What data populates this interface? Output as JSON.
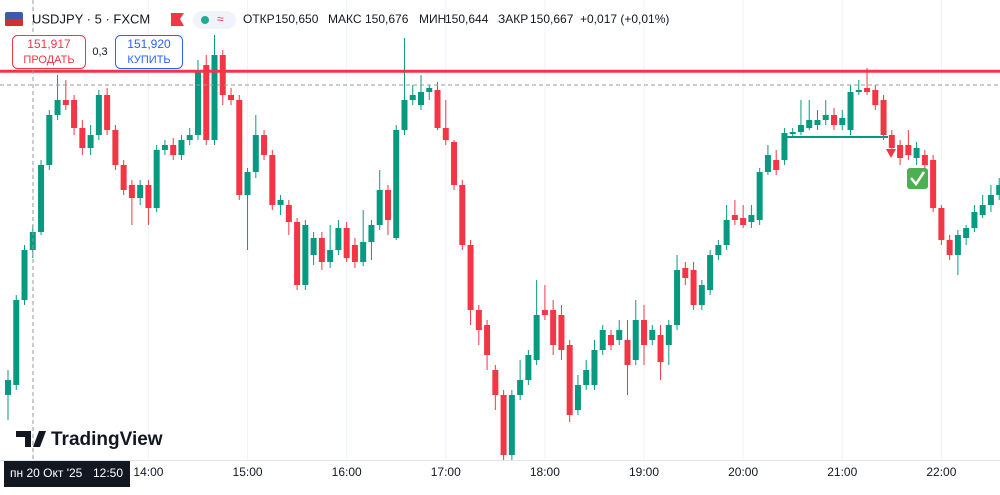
{
  "header": {
    "symbol": "USDJPY · 5 · FXCM",
    "open_label": "ОТКР",
    "open": "150,650",
    "high_label": "МАКС",
    "high": "150,676",
    "low_label": "МИН",
    "low": "150,644",
    "close_label": "ЗАКР",
    "close": "150,667",
    "change": "+0,017 (+0,01%)"
  },
  "trade": {
    "sell_price": "151,917",
    "sell_label": "ПРОДАТЬ",
    "spread": "0,3",
    "buy_price": "151,920",
    "buy_label": "КУПИТЬ"
  },
  "crosshair": {
    "date": "пн 20 Окт '25",
    "time": "12:50"
  },
  "watermark": "TradingView",
  "chart_data": {
    "type": "candlestick",
    "up_color": "#089981",
    "down_color": "#f23645",
    "price_line": 151.917,
    "price_line_color": "#f23645",
    "grid": true,
    "ylim": [
      148.03,
      152.63
    ],
    "categories": [
      null,
      null,
      null,
      null,
      null,
      null,
      null,
      null,
      null,
      null,
      null,
      null,
      null,
      null,
      null,
      null,
      null,
      "14:00",
      null,
      null,
      null,
      null,
      null,
      null,
      null,
      null,
      null,
      null,
      null,
      "15:00",
      null,
      null,
      null,
      null,
      null,
      null,
      null,
      null,
      null,
      null,
      null,
      "16:00",
      null,
      null,
      null,
      null,
      null,
      null,
      null,
      null,
      null,
      null,
      null,
      "17:00",
      null,
      null,
      null,
      null,
      null,
      null,
      null,
      null,
      null,
      null,
      null,
      "18:00",
      null,
      null,
      null,
      null,
      null,
      null,
      null,
      null,
      null,
      null,
      null,
      "19:00",
      null,
      null,
      null,
      null,
      null,
      null,
      null,
      null,
      null,
      null,
      null,
      "20:00",
      null,
      null,
      null,
      null,
      null,
      null,
      null,
      null,
      null,
      null,
      null,
      "21:00",
      null,
      null,
      null,
      null,
      null,
      null,
      null,
      null,
      null,
      null,
      null,
      "22:00",
      null,
      null,
      null,
      null,
      null,
      null,
      null
    ],
    "open": [
      148.68,
      148.78,
      149.63,
      150.13,
      150.31,
      150.98,
      151.48,
      151.63,
      151.63,
      151.35,
      151.15,
      151.28,
      151.68,
      151.33,
      150.98,
      150.78,
      150.65,
      150.78,
      150.55,
      151.13,
      151.18,
      151.08,
      151.23,
      151.28,
      151.98,
      151.23,
      152.08,
      151.68,
      151.63,
      150.68,
      150.91,
      151.28,
      151.08,
      150.58,
      150.58,
      150.41,
      149.78,
      150.08,
      150.25,
      150.01,
      150.13,
      150.35,
      150.18,
      150.01,
      150.21,
      150.38,
      150.73,
      150.25,
      151.33,
      151.63,
      151.58,
      151.71,
      151.73,
      151.35,
      151.21,
      150.78,
      150.18,
      149.53,
      149.38,
      148.93,
      148.68,
      148.08,
      148.68,
      148.83,
      149.03,
      149.53,
      149.53,
      149.48,
      149.18,
      148.53,
      148.78,
      148.78,
      149.13,
      149.28,
      149.23,
      149.23,
      149.03,
      149.43,
      149.23,
      149.28,
      149.18,
      149.38,
      149.95,
      149.93,
      149.58,
      149.73,
      150.08,
      150.18,
      150.48,
      150.45,
      150.41,
      150.43,
      150.91,
      151.03,
      151.03,
      151.29,
      151.31,
      151.35,
      151.38,
      151.43,
      151.48,
      151.38,
      151.33,
      151.71,
      151.75,
      151.73,
      151.63,
      151.28,
      151.18,
      151.18,
      151.05,
      151.08,
      151.03,
      150.55,
      150.23,
      150.08,
      150.25,
      150.35,
      150.48,
      150.58,
      150.68
    ],
    "high": [
      148.93,
      149.68,
      150.18,
      150.38,
      151.03,
      151.53,
      151.88,
      151.83,
      151.68,
      151.43,
      151.38,
      151.73,
      151.75,
      151.38,
      151.03,
      150.83,
      150.83,
      150.83,
      151.18,
      151.23,
      151.25,
      151.28,
      151.35,
      152.03,
      152.08,
      152.28,
      152.13,
      151.75,
      151.68,
      150.95,
      151.48,
      151.33,
      151.13,
      150.68,
      150.63,
      150.45,
      150.43,
      150.31,
      150.31,
      150.38,
      150.43,
      150.41,
      150.25,
      150.53,
      150.43,
      150.93,
      150.78,
      151.38,
      152.25,
      151.78,
      151.88,
      151.78,
      151.81,
      151.63,
      151.23,
      150.83,
      150.23,
      149.58,
      149.43,
      148.98,
      148.73,
      148.73,
      149.03,
      149.13,
      149.83,
      149.78,
      149.63,
      149.58,
      149.23,
      148.88,
      149.03,
      149.23,
      149.38,
      149.33,
      149.43,
      149.43,
      149.63,
      149.58,
      149.38,
      149.38,
      149.43,
      150.08,
      150.01,
      150.01,
      149.83,
      150.13,
      150.23,
      150.58,
      150.63,
      150.58,
      150.58,
      150.95,
      151.18,
      151.13,
      151.35,
      151.35,
      151.63,
      151.63,
      151.53,
      151.63,
      151.55,
      151.53,
      151.78,
      151.83,
      151.95,
      151.78,
      151.68,
      151.33,
      151.23,
      151.33,
      151.21,
      151.13,
      151.08,
      150.58,
      150.28,
      150.33,
      150.38,
      150.58,
      150.68,
      150.78,
      150.85
    ],
    "low": [
      148.43,
      148.73,
      149.58,
      150.05,
      150.28,
      150.93,
      151.43,
      151.53,
      151.28,
      151.08,
      151.08,
      151.23,
      151.28,
      150.93,
      150.68,
      150.38,
      150.58,
      150.38,
      150.51,
      151.08,
      151.03,
      151.03,
      151.18,
      151.23,
      151.18,
      151.18,
      151.58,
      151.58,
      150.63,
      150.13,
      150.85,
      151.03,
      150.53,
      150.48,
      150.28,
      149.73,
      149.73,
      149.98,
      149.93,
      149.95,
      150.08,
      150.01,
      149.95,
      149.97,
      150.03,
      150.33,
      150.28,
      150.23,
      151.28,
      151.58,
      151.53,
      151.63,
      151.33,
      151.18,
      150.73,
      150.13,
      149.38,
      149.18,
      148.93,
      148.53,
      148.03,
      148.03,
      148.63,
      148.78,
      148.98,
      149.43,
      149.08,
      149.03,
      148.41,
      148.48,
      148.73,
      148.73,
      149.08,
      149.13,
      149.18,
      148.68,
      148.98,
      148.98,
      149.18,
      148.83,
      148.98,
      149.33,
      149.78,
      149.53,
      149.53,
      149.68,
      150.03,
      150.13,
      150.38,
      150.35,
      150.35,
      150.38,
      150.88,
      150.88,
      150.98,
      151.25,
      151.28,
      151.33,
      151.33,
      151.38,
      151.33,
      151.33,
      151.28,
      151.68,
      151.68,
      151.53,
      151.23,
      151.08,
      150.98,
      151.03,
      150.98,
      150.93,
      150.51,
      150.18,
      150.03,
      149.88,
      150.18,
      150.31,
      150.45,
      150.51,
      150.63
    ],
    "close": [
      148.83,
      149.63,
      150.13,
      150.31,
      150.98,
      151.48,
      151.63,
      151.58,
      151.35,
      151.15,
      151.28,
      151.68,
      151.33,
      150.98,
      150.73,
      150.65,
      150.78,
      150.55,
      151.13,
      151.18,
      151.08,
      151.23,
      151.28,
      151.93,
      151.23,
      152.08,
      151.68,
      151.63,
      150.68,
      150.91,
      151.28,
      151.08,
      150.58,
      150.63,
      150.41,
      149.78,
      150.38,
      150.25,
      150.01,
      150.13,
      150.35,
      150.05,
      150.01,
      150.21,
      150.38,
      150.73,
      150.43,
      151.33,
      151.63,
      151.68,
      151.71,
      151.75,
      151.35,
      151.23,
      150.78,
      150.18,
      149.53,
      149.33,
      149.08,
      148.68,
      148.08,
      148.68,
      148.83,
      149.08,
      149.48,
      149.48,
      149.18,
      149.13,
      148.48,
      148.78,
      148.93,
      149.13,
      149.33,
      149.18,
      149.33,
      148.98,
      149.43,
      149.18,
      149.33,
      149.01,
      149.38,
      149.93,
      149.85,
      149.58,
      149.78,
      150.08,
      150.18,
      150.43,
      150.43,
      150.38,
      150.48,
      150.91,
      151.08,
      150.93,
      151.3,
      151.31,
      151.38,
      151.43,
      151.43,
      151.48,
      151.38,
      151.45,
      151.71,
      151.73,
      151.71,
      151.58,
      151.28,
      151.15,
      151.05,
      151.08,
      151.15,
      150.98,
      150.55,
      150.23,
      150.08,
      150.28,
      150.35,
      150.51,
      150.58,
      150.68,
      150.78
    ]
  }
}
